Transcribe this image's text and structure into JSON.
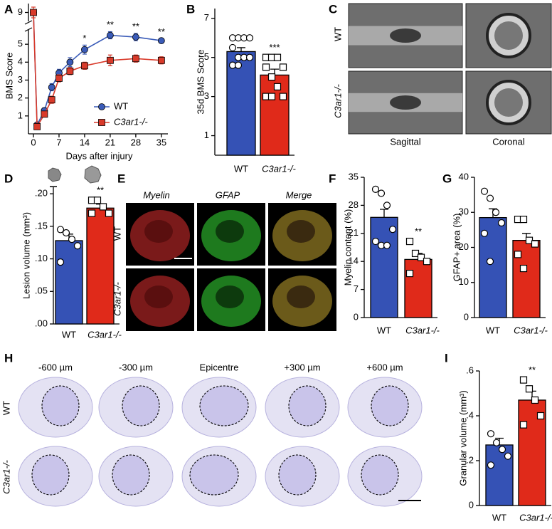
{
  "panel_labels": [
    "A",
    "B",
    "C",
    "D",
    "E",
    "F",
    "G",
    "H",
    "I"
  ],
  "chart_data": [
    {
      "type": "line",
      "ylabel": "BMS Score",
      "xlabel": "Days after injury",
      "x": [
        0,
        1,
        3,
        5,
        7,
        10,
        14,
        21,
        28,
        35
      ],
      "xlim": [
        0,
        36
      ],
      "xticks": [
        0,
        7,
        14,
        21,
        28,
        35
      ],
      "ylim": [
        0,
        9.5
      ],
      "yticks": [
        1,
        2,
        3,
        4,
        5,
        9
      ],
      "axis_break": [
        5.8,
        8.5
      ],
      "series": [
        {
          "name": "WT",
          "color": "#3a5bb8",
          "marker": "circle",
          "values": [
            9,
            0.5,
            1.3,
            2.6,
            3.4,
            4.0,
            4.7,
            5.5,
            5.4,
            5.2
          ],
          "errors": [
            0,
            0.1,
            0.15,
            0.2,
            0.2,
            0.25,
            0.25,
            0.2,
            0.2,
            0.1
          ]
        },
        {
          "name": "C3ar1-/-",
          "color": "#d93a2a",
          "marker": "square",
          "values": [
            9,
            0.4,
            1.1,
            1.9,
            3.1,
            3.5,
            3.8,
            4.1,
            4.2,
            4.1
          ],
          "errors": [
            0.3,
            0.1,
            0.15,
            0.2,
            0.2,
            0.2,
            0.2,
            0.3,
            0.2,
            0.2
          ]
        }
      ],
      "annotations": [
        {
          "x": 14,
          "text": "*"
        },
        {
          "x": 21,
          "text": "**"
        },
        {
          "x": 28,
          "text": "**"
        },
        {
          "x": 35,
          "text": "**"
        }
      ]
    },
    {
      "type": "bar",
      "ylabel": "35d BMS Score",
      "categories": [
        "WT",
        "C3ar1-/-"
      ],
      "values": [
        5.3,
        4.1
      ],
      "errors": [
        0.2,
        0.3
      ],
      "colors": [
        "#3552b5",
        "#e02a1a"
      ],
      "markers": [
        "circle",
        "square"
      ],
      "points": [
        [
          6,
          6,
          6,
          6,
          5.5,
          5,
          5,
          5,
          4.6,
          4.6
        ],
        [
          5,
          5,
          5,
          4.5,
          4.5,
          4,
          3.5,
          3,
          3,
          3
        ]
      ],
      "ylim": [
        0,
        7.5
      ],
      "yticks": [
        1,
        3,
        5,
        7
      ],
      "significance": "***"
    },
    {
      "type": "bar",
      "ylabel": "Lesion volume (mm³)",
      "categories": [
        "WT",
        "C3ar1-/-"
      ],
      "values": [
        0.128,
        0.178
      ],
      "errors": [
        0.01,
        0.006
      ],
      "colors": [
        "#3552b5",
        "#e02a1a"
      ],
      "markers": [
        "circle",
        "square"
      ],
      "points": [
        [
          0.145,
          0.14,
          0.13,
          0.12,
          0.095
        ],
        [
          0.19,
          0.19,
          0.18,
          0.17,
          0.17
        ]
      ],
      "ylim": [
        0,
        0.21
      ],
      "yticks": [
        {
          "value": 0,
          "label": ".00"
        },
        {
          "value": 0.05,
          "label": ".05"
        },
        {
          "value": 0.1,
          "label": ".10"
        },
        {
          "value": 0.15,
          "label": ".15"
        },
        {
          "value": 0.2,
          "label": ".20"
        }
      ],
      "significance": "**"
    },
    {
      "type": "bar",
      "ylabel": "Myelin content (%)",
      "categories": [
        "WT",
        "C3ar1-/-"
      ],
      "values": [
        25,
        14.5
      ],
      "errors": [
        2,
        1.5
      ],
      "colors": [
        "#3552b5",
        "#e02a1a"
      ],
      "markers": [
        "circle",
        "square"
      ],
      "points": [
        [
          32,
          31,
          28,
          22,
          19,
          18,
          18
        ],
        [
          19,
          16,
          15,
          14,
          11
        ]
      ],
      "ylim": [
        0,
        35
      ],
      "yticks": [
        0,
        7,
        14,
        21,
        28,
        35
      ],
      "significance": "**"
    },
    {
      "type": "bar",
      "ylabel": "GFAP+ area (%)",
      "categories": [
        "WT",
        "C3ar1-/-"
      ],
      "values": [
        28.5,
        22
      ],
      "errors": [
        2.5,
        2
      ],
      "colors": [
        "#3552b5",
        "#e02a1a"
      ],
      "markers": [
        "circle",
        "square"
      ],
      "points": [
        [
          36,
          34,
          30,
          27,
          24,
          16
        ],
        [
          28,
          28,
          22,
          21,
          18,
          14
        ]
      ],
      "ylim": [
        0,
        40
      ],
      "yticks": [
        0,
        10,
        20,
        30,
        40
      ]
    },
    {
      "type": "bar",
      "ylabel": "Granular volume (mm³)",
      "categories": [
        "WT",
        "C3ar1-/-"
      ],
      "values": [
        0.27,
        0.47
      ],
      "errors": [
        0.03,
        0.04
      ],
      "colors": [
        "#3552b5",
        "#e02a1a"
      ],
      "markers": [
        "circle",
        "square"
      ],
      "points": [
        [
          0.32,
          0.28,
          0.25,
          0.22,
          0.18
        ],
        [
          0.56,
          0.52,
          0.47,
          0.4,
          0.36
        ]
      ],
      "ylim": [
        0,
        0.6
      ],
      "yticks": [
        0,
        {
          "value": 0.2,
          "label": ".2"
        },
        {
          "value": 0.4,
          "label": ".4"
        },
        {
          "value": 0.6,
          "label": ".6"
        }
      ],
      "significance": "**"
    }
  ],
  "images": {
    "C": {
      "rows": [
        "WT",
        "C3ar1-/-"
      ],
      "columns": [
        "Sagittal",
        "Coronal"
      ]
    },
    "E": {
      "rows": [
        "WT",
        "C3ar1-/-"
      ],
      "columns": [
        "Myelin",
        "GFAP",
        "Merge"
      ]
    },
    "H": {
      "rows": [
        "WT",
        "C3ar1-/-"
      ],
      "columns": [
        "-600 µm",
        "-300 µm",
        "Epicentre",
        "+300 µm",
        "+600 µm"
      ]
    }
  }
}
